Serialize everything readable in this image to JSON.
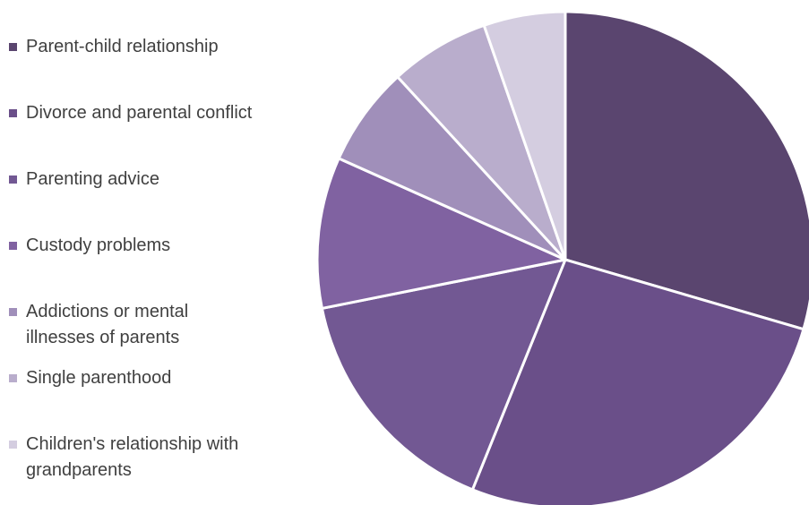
{
  "chart_data": {
    "type": "pie",
    "start_angle_deg": 0,
    "direction": "clockwise",
    "slices": [
      {
        "label": "Parent-child relationship",
        "value": 30,
        "color": "#5a456f"
      },
      {
        "label": "Divorce and parental conflict",
        "value": 27,
        "color": "#6a4f89"
      },
      {
        "label": "Parenting advice",
        "value": 16,
        "color": "#725893"
      },
      {
        "label": "Custody problems",
        "value": 10,
        "color": "#8062a1"
      },
      {
        "label": "Addictions or mental\nillnesses of parents",
        "value": 6.6,
        "color": "#a08fba"
      },
      {
        "label": "Single parenthood",
        "value": 6.6,
        "color": "#b9adcc"
      },
      {
        "label": "Children's relationship with\ngrandparents",
        "value": 5.4,
        "color": "#d4cde0"
      }
    ]
  }
}
